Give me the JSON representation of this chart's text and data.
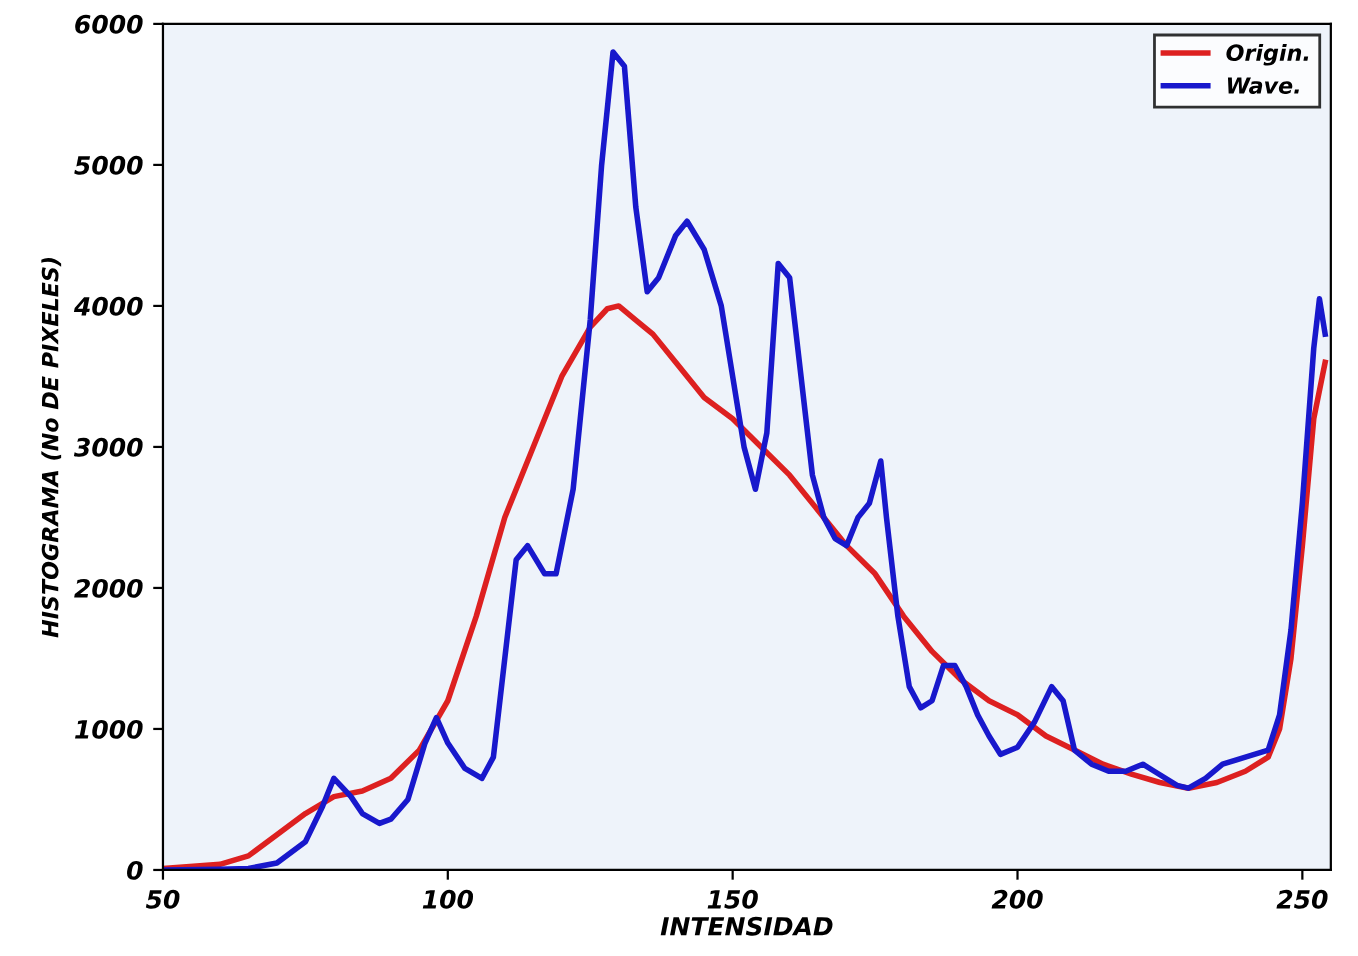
{
  "chart_data": {
    "type": "line",
    "xlabel": "INTENSIDAD",
    "ylabel": "HISTOGRAMA (No DE PIXELES)",
    "xlim": [
      50,
      255
    ],
    "ylim": [
      0,
      6000
    ],
    "xticks": [
      50,
      100,
      150,
      200,
      250
    ],
    "yticks": [
      0,
      1000,
      2000,
      3000,
      4000,
      5000,
      6000
    ],
    "grid": false,
    "legend": "top right",
    "line_style": "solid",
    "marker": "none",
    "series": [
      {
        "name": "Origin.",
        "color": "#dd2020",
        "x": [
          50,
          60,
          65,
          70,
          75,
          80,
          85,
          90,
          95,
          100,
          105,
          110,
          115,
          120,
          125,
          128,
          130,
          133,
          136,
          140,
          145,
          150,
          155,
          160,
          165,
          170,
          175,
          180,
          185,
          190,
          195,
          200,
          205,
          210,
          215,
          220,
          225,
          230,
          235,
          240,
          244,
          246,
          248,
          250,
          252,
          254
        ],
        "values": [
          10,
          40,
          100,
          250,
          400,
          520,
          560,
          650,
          850,
          1200,
          1800,
          2500,
          3000,
          3500,
          3850,
          3980,
          4000,
          3900,
          3800,
          3600,
          3350,
          3200,
          3000,
          2800,
          2550,
          2300,
          2100,
          1800,
          1550,
          1350,
          1200,
          1100,
          950,
          850,
          750,
          680,
          620,
          580,
          620,
          700,
          800,
          1000,
          1500,
          2300,
          3200,
          3600
        ]
      },
      {
        "name": "Wave.",
        "color": "#1818cc",
        "x": [
          50,
          60,
          65,
          70,
          75,
          78,
          80,
          83,
          85,
          88,
          90,
          93,
          96,
          98,
          100,
          103,
          106,
          108,
          110,
          112,
          114,
          117,
          119,
          122,
          125,
          127,
          129,
          131,
          133,
          135,
          137,
          140,
          142,
          145,
          148,
          150,
          152,
          154,
          156,
          158,
          160,
          162,
          164,
          166,
          168,
          170,
          172,
          174,
          176,
          177,
          179,
          181,
          183,
          185,
          187,
          189,
          191,
          193,
          195,
          197,
          200,
          203,
          206,
          208,
          210,
          213,
          216,
          219,
          222,
          224,
          228,
          230,
          233,
          236,
          240,
          244,
          246,
          248,
          250,
          252,
          253,
          254
        ],
        "values": [
          0,
          5,
          10,
          50,
          200,
          450,
          650,
          520,
          400,
          330,
          360,
          500,
          900,
          1080,
          900,
          720,
          650,
          800,
          1500,
          2200,
          2300,
          2100,
          2100,
          2700,
          3900,
          5000,
          5800,
          5700,
          4700,
          4100,
          4200,
          4500,
          4600,
          4400,
          4000,
          3500,
          3000,
          2700,
          3100,
          4300,
          4200,
          3500,
          2800,
          2500,
          2350,
          2300,
          2500,
          2600,
          2900,
          2500,
          1800,
          1300,
          1150,
          1200,
          1450,
          1450,
          1300,
          1100,
          950,
          820,
          870,
          1050,
          1300,
          1200,
          850,
          750,
          700,
          700,
          750,
          700,
          600,
          580,
          650,
          750,
          800,
          850,
          1100,
          1700,
          2600,
          3700,
          4050,
          3800
        ]
      }
    ]
  }
}
